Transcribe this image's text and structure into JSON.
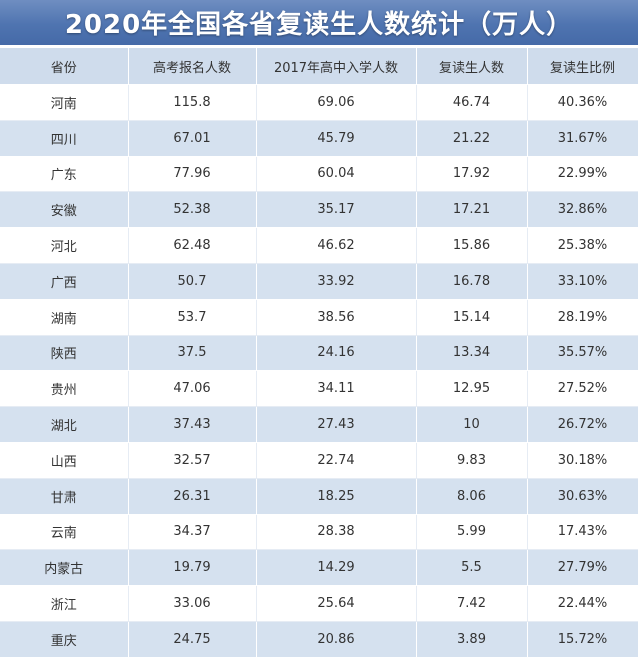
{
  "title": "2020年全国各省复读生人数统计（万人）",
  "colors": {
    "banner": "#4f74b0",
    "header_row": "#cfdcec",
    "stripe": "#d5e1ef"
  },
  "table": {
    "headers": [
      "省份",
      "高考报名人数",
      "2017年高中入学人数",
      "复读生人数",
      "复读生比例"
    ],
    "rows": [
      [
        "河南",
        "115.8",
        "69.06",
        "46.74",
        "40.36%"
      ],
      [
        "四川",
        "67.01",
        "45.79",
        "21.22",
        "31.67%"
      ],
      [
        "广东",
        "77.96",
        "60.04",
        "17.92",
        "22.99%"
      ],
      [
        "安徽",
        "52.38",
        "35.17",
        "17.21",
        "32.86%"
      ],
      [
        "河北",
        "62.48",
        "46.62",
        "15.86",
        "25.38%"
      ],
      [
        "广西",
        "50.7",
        "33.92",
        "16.78",
        "33.10%"
      ],
      [
        "湖南",
        "53.7",
        "38.56",
        "15.14",
        "28.19%"
      ],
      [
        "陕西",
        "37.5",
        "24.16",
        "13.34",
        "35.57%"
      ],
      [
        "贵州",
        "47.06",
        "34.11",
        "12.95",
        "27.52%"
      ],
      [
        "湖北",
        "37.43",
        "27.43",
        "10",
        "26.72%"
      ],
      [
        "山西",
        "32.57",
        "22.74",
        "9.83",
        "30.18%"
      ],
      [
        "甘肃",
        "26.31",
        "18.25",
        "8.06",
        "30.63%"
      ],
      [
        "云南",
        "34.37",
        "28.38",
        "5.99",
        "17.43%"
      ],
      [
        "内蒙古",
        "19.79",
        "14.29",
        "5.5",
        "27.79%"
      ],
      [
        "浙江",
        "33.06",
        "25.64",
        "7.42",
        "22.44%"
      ],
      [
        "重庆",
        "24.75",
        "20.86",
        "3.89",
        "15.72%"
      ]
    ]
  }
}
